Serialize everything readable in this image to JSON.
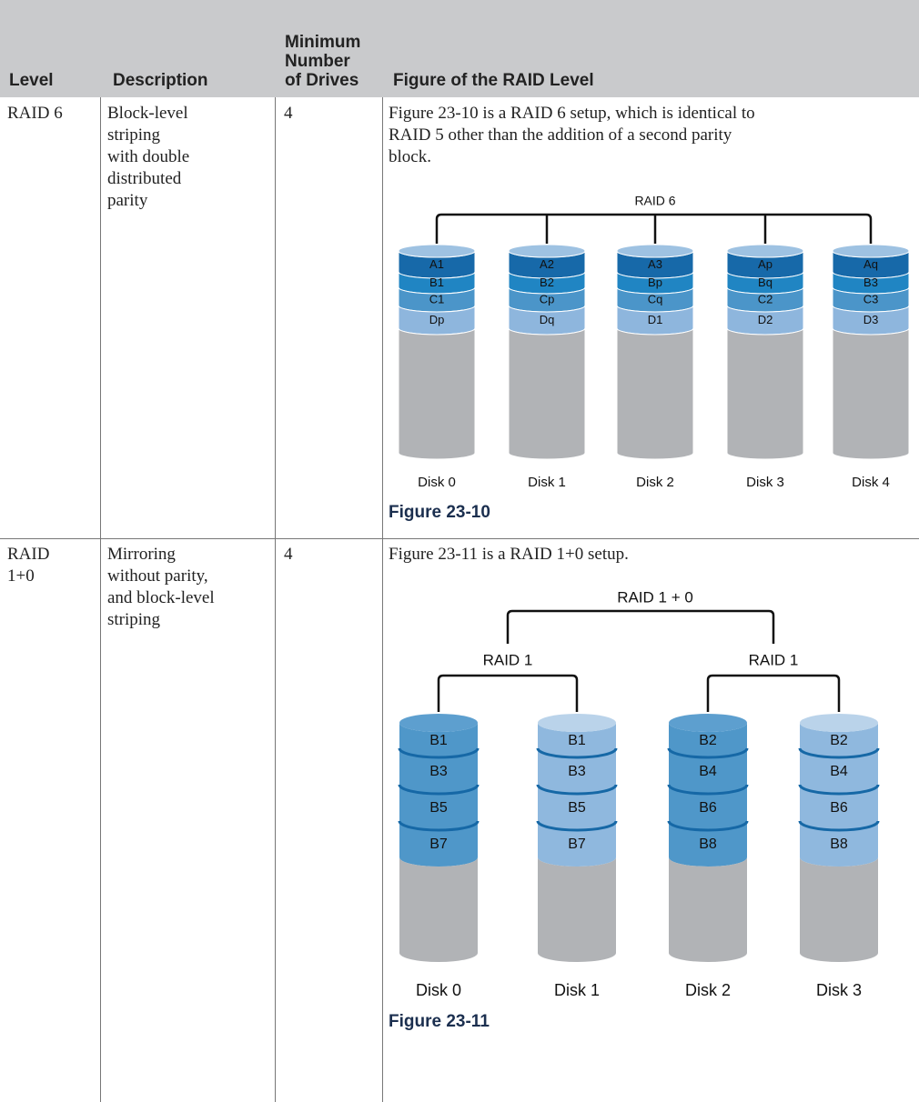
{
  "table": {
    "header": [
      [
        "Level"
      ],
      [
        "Description"
      ],
      [
        "Minimum",
        "Number",
        "of Drives"
      ],
      [
        "Figure of the RAID Level"
      ]
    ],
    "rows": [
      {
        "level": [
          "RAID 6"
        ],
        "description": [
          "Block-level",
          "striping",
          "with double",
          "distributed",
          "parity"
        ],
        "min_drives": 4,
        "figure": {
          "text": [
            "Figure 23-10 is a RAID 6 setup, which is identical to",
            "RAID 5 other than the addition of a second parity",
            "block."
          ],
          "diagram": {
            "title": "RAID 6",
            "disks": [
              {
                "label": "Disk 0",
                "blocks": [
                  "A1",
                  "B1",
                  "C1",
                  "Dp"
                ]
              },
              {
                "label": "Disk 1",
                "blocks": [
                  "A2",
                  "B2",
                  "Cp",
                  "Dq"
                ]
              },
              {
                "label": "Disk 2",
                "blocks": [
                  "A3",
                  "Bp",
                  "Cq",
                  "D1"
                ]
              },
              {
                "label": "Disk 3",
                "blocks": [
                  "Ap",
                  "Bq",
                  "C2",
                  "D2"
                ]
              },
              {
                "label": "Disk 4",
                "blocks": [
                  "Aq",
                  "B3",
                  "C3",
                  "D3"
                ]
              }
            ]
          },
          "caption": "Figure 23-10"
        }
      },
      {
        "level": [
          "RAID",
          "1+0"
        ],
        "description": [
          "Mirroring",
          "without parity,",
          "and block-level",
          "striping"
        ],
        "min_drives": 4,
        "figure": {
          "text": [
            "Figure 23-11 is a RAID 1+0 setup."
          ],
          "diagram": {
            "title": "RAID 1 + 0",
            "groups": [
              {
                "title": "RAID 1",
                "disks": [
                  {
                    "label": "Disk 0",
                    "blocks": [
                      "B1",
                      "B3",
                      "B5",
                      "B7"
                    ]
                  },
                  {
                    "label": "Disk 1",
                    "blocks": [
                      "B1",
                      "B3",
                      "B5",
                      "B7"
                    ]
                  }
                ]
              },
              {
                "title": "RAID 1",
                "disks": [
                  {
                    "label": "Disk 2",
                    "blocks": [
                      "B2",
                      "B4",
                      "B6",
                      "B8"
                    ]
                  },
                  {
                    "label": "Disk 3",
                    "blocks": [
                      "B2",
                      "B4",
                      "B6",
                      "B8"
                    ]
                  }
                ]
              }
            ]
          },
          "caption": "Figure 23-11"
        }
      }
    ]
  }
}
